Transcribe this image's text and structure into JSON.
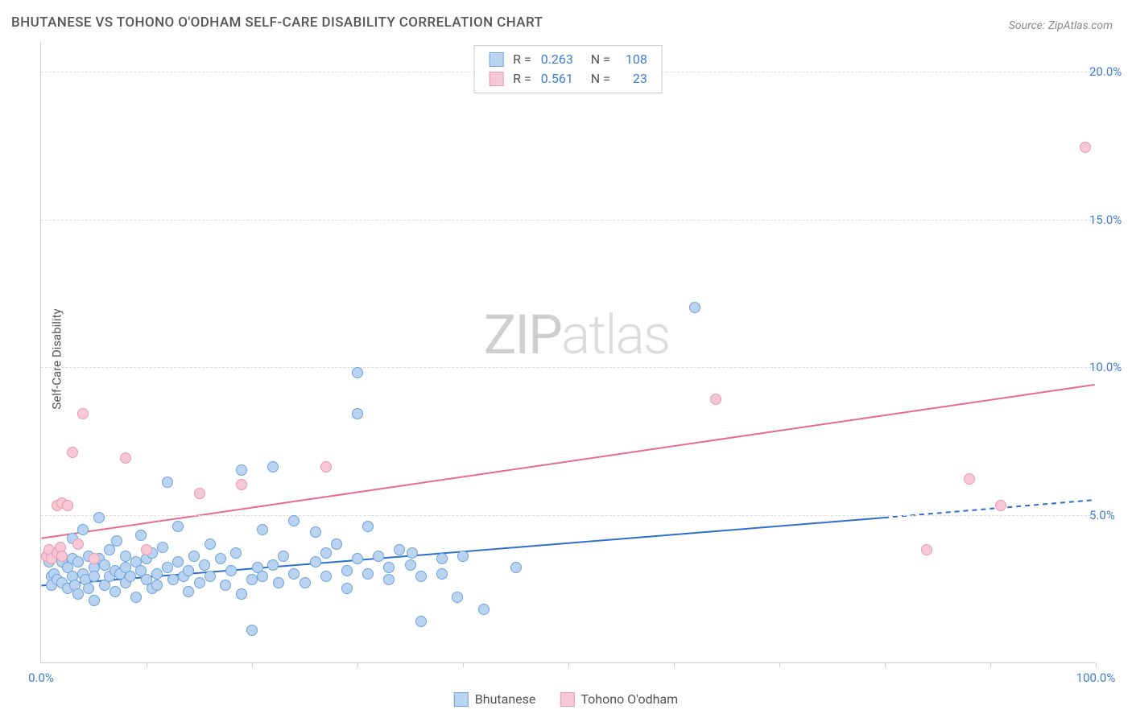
{
  "title": "BHUTANESE VS TOHONO O'ODHAM SELF-CARE DISABILITY CORRELATION CHART",
  "source_label": "Source:",
  "source_value": "ZipAtlas.com",
  "ylabel": "Self-Care Disability",
  "watermark": {
    "zip": "ZIP",
    "atlas": "atlas"
  },
  "chart": {
    "type": "scatter-with-trendlines",
    "xlim": [
      0,
      100
    ],
    "ylim": [
      0,
      21
    ],
    "x_ticks": [
      10,
      20,
      30,
      40,
      50,
      60,
      70,
      80,
      90,
      100
    ],
    "x_tick_labels": {
      "0": "0.0%",
      "100": "100.0%"
    },
    "y_gridlines": [
      5,
      10,
      15,
      20
    ],
    "y_tick_labels": [
      "5.0%",
      "10.0%",
      "15.0%",
      "20.0%"
    ],
    "background_color": "#ffffff",
    "grid_color": "#dddddd",
    "axis_color": "#cccccc",
    "tick_label_color": "#3b7dd8",
    "marker_radius": 7,
    "series": [
      {
        "name": "Bhutanese",
        "fill": "#b9d3f0",
        "stroke": "#6ea3de",
        "line_color": "#2d6fd0",
        "line_width": 2,
        "R": "0.263",
        "N": "108",
        "trend": {
          "x1": 0,
          "y1": 2.6,
          "x2": 80,
          "y2": 4.9,
          "dash_from_x": 80,
          "x3": 100,
          "y3": 5.5
        },
        "points": [
          [
            0.5,
            3.6
          ],
          [
            0.8,
            3.4
          ],
          [
            1,
            2.9
          ],
          [
            1,
            2.6
          ],
          [
            1.2,
            3.0
          ],
          [
            1.5,
            3.6
          ],
          [
            1.5,
            2.8
          ],
          [
            2,
            2.7
          ],
          [
            2,
            3.4
          ],
          [
            2.5,
            2.5
          ],
          [
            2.5,
            3.2
          ],
          [
            3,
            4.2
          ],
          [
            3,
            2.9
          ],
          [
            3,
            3.5
          ],
          [
            3.2,
            2.6
          ],
          [
            3.5,
            3.4
          ],
          [
            3.5,
            2.3
          ],
          [
            4,
            3.0
          ],
          [
            4,
            4.5
          ],
          [
            4.2,
            2.8
          ],
          [
            4.5,
            3.6
          ],
          [
            4.5,
            2.5
          ],
          [
            5,
            3.2
          ],
          [
            5,
            2.1
          ],
          [
            5,
            2.9
          ],
          [
            5.5,
            3.5
          ],
          [
            5.5,
            4.9
          ],
          [
            6,
            2.6
          ],
          [
            6,
            3.3
          ],
          [
            6.5,
            2.9
          ],
          [
            6.5,
            3.8
          ],
          [
            7,
            3.1
          ],
          [
            7,
            2.4
          ],
          [
            7.2,
            4.1
          ],
          [
            7.5,
            3.0
          ],
          [
            8,
            2.7
          ],
          [
            8,
            3.6
          ],
          [
            8,
            3.2
          ],
          [
            8.5,
            2.9
          ],
          [
            9,
            3.4
          ],
          [
            9,
            2.2
          ],
          [
            9.5,
            3.1
          ],
          [
            9.5,
            4.3
          ],
          [
            10,
            2.8
          ],
          [
            10,
            3.5
          ],
          [
            10.5,
            2.5
          ],
          [
            10.5,
            3.7
          ],
          [
            11,
            3.0
          ],
          [
            11,
            2.6
          ],
          [
            11.5,
            3.9
          ],
          [
            12,
            6.1
          ],
          [
            12,
            3.2
          ],
          [
            12.5,
            2.8
          ],
          [
            13,
            4.6
          ],
          [
            13,
            3.4
          ],
          [
            13.5,
            2.9
          ],
          [
            14,
            3.1
          ],
          [
            14,
            2.4
          ],
          [
            14.5,
            3.6
          ],
          [
            15,
            2.7
          ],
          [
            15.5,
            3.3
          ],
          [
            16,
            4.0
          ],
          [
            16,
            2.9
          ],
          [
            17,
            3.5
          ],
          [
            17.5,
            2.6
          ],
          [
            18,
            3.1
          ],
          [
            18.5,
            3.7
          ],
          [
            19,
            2.3
          ],
          [
            19,
            6.5
          ],
          [
            20,
            2.8
          ],
          [
            20,
            1.1
          ],
          [
            20.5,
            3.2
          ],
          [
            21,
            4.5
          ],
          [
            21,
            2.9
          ],
          [
            22,
            6.6
          ],
          [
            22,
            3.3
          ],
          [
            22.5,
            2.7
          ],
          [
            23,
            3.6
          ],
          [
            24,
            4.8
          ],
          [
            24,
            3.0
          ],
          [
            25,
            2.7
          ],
          [
            26,
            3.4
          ],
          [
            26,
            4.4
          ],
          [
            27,
            2.9
          ],
          [
            27,
            3.7
          ],
          [
            28,
            4.0
          ],
          [
            29,
            3.1
          ],
          [
            29,
            2.5
          ],
          [
            30,
            8.4
          ],
          [
            30,
            3.5
          ],
          [
            30,
            9.8
          ],
          [
            31,
            4.6
          ],
          [
            31,
            3.0
          ],
          [
            32,
            3.6
          ],
          [
            33,
            3.2
          ],
          [
            33,
            2.8
          ],
          [
            34,
            3.8
          ],
          [
            35,
            3.3
          ],
          [
            35.2,
            3.7
          ],
          [
            36,
            2.9
          ],
          [
            36,
            1.4
          ],
          [
            38,
            3.0
          ],
          [
            38,
            3.5
          ],
          [
            39.5,
            2.2
          ],
          [
            40,
            3.6
          ],
          [
            42,
            1.8
          ],
          [
            45,
            3.2
          ],
          [
            62,
            12.0
          ]
        ]
      },
      {
        "name": "Tohono O'odham",
        "fill": "#f6c7d4",
        "stroke": "#e999b1",
        "line_color": "#e86a8f",
        "line_width": 2,
        "R": "0.561",
        "N": "23",
        "trend": {
          "x1": 0,
          "y1": 4.2,
          "x2": 100,
          "y2": 9.4
        },
        "points": [
          [
            0.5,
            3.6
          ],
          [
            0.8,
            3.8
          ],
          [
            1,
            3.5
          ],
          [
            1.5,
            3.7
          ],
          [
            1.5,
            5.3
          ],
          [
            1.8,
            3.9
          ],
          [
            2,
            3.6
          ],
          [
            2,
            5.4
          ],
          [
            2.5,
            5.3
          ],
          [
            3,
            7.1
          ],
          [
            3.5,
            4.0
          ],
          [
            4,
            8.4
          ],
          [
            5,
            3.5
          ],
          [
            8,
            6.9
          ],
          [
            10,
            3.8
          ],
          [
            15,
            5.7
          ],
          [
            19,
            6.0
          ],
          [
            27,
            6.6
          ],
          [
            64,
            8.9
          ],
          [
            84,
            3.8
          ],
          [
            88,
            6.2
          ],
          [
            91,
            5.3
          ],
          [
            99,
            17.4
          ]
        ]
      }
    ]
  },
  "legend_bottom": [
    {
      "label": "Bhutanese",
      "fill": "#b9d3f0",
      "stroke": "#6ea3de"
    },
    {
      "label": "Tohono O'odham",
      "fill": "#f6c7d4",
      "stroke": "#e999b1"
    }
  ]
}
